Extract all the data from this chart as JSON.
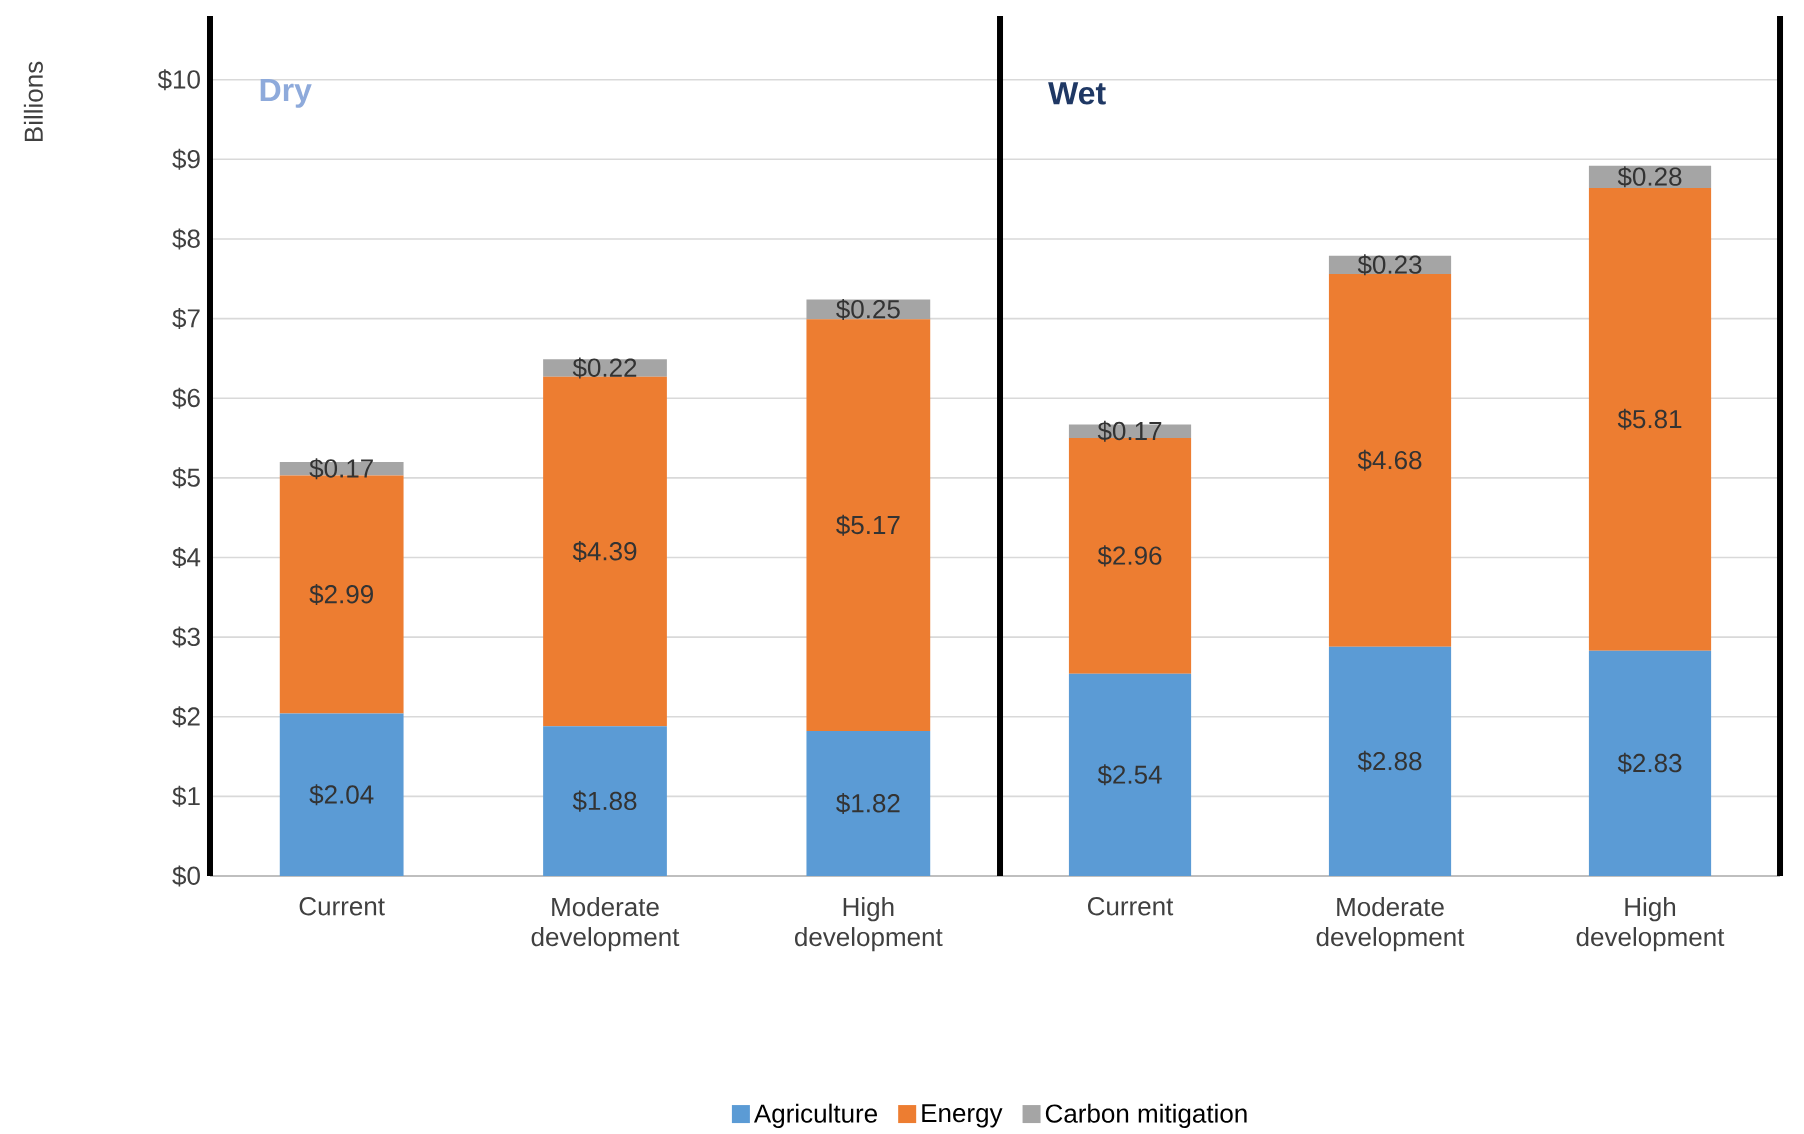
{
  "chart_data": [
    {
      "type": "bar",
      "title": "Dry",
      "ylabel": "Billions",
      "stacked": true,
      "categories": [
        "Current",
        "Moderate development",
        "High development"
      ],
      "ylim": [
        0,
        10.8
      ],
      "yticks": [
        {
          "value": 0,
          "label": "$0"
        },
        {
          "value": 1,
          "label": "$1"
        },
        {
          "value": 2,
          "label": "$2"
        },
        {
          "value": 3,
          "label": "$3"
        },
        {
          "value": 4,
          "label": "$4"
        },
        {
          "value": 5,
          "label": "$5"
        },
        {
          "value": 6,
          "label": "$6"
        },
        {
          "value": 7,
          "label": "$7"
        },
        {
          "value": 8,
          "label": "$8"
        },
        {
          "value": 9,
          "label": "$9"
        },
        {
          "value": 10,
          "label": "$10"
        }
      ],
      "grid": "y",
      "legend": "bottom",
      "series": [
        {
          "name": "Agriculture",
          "color": "#5b9bd5",
          "values": [
            2.04,
            1.88,
            1.82
          ],
          "value_labels": [
            "$2.04",
            "$1.88",
            "$1.82"
          ]
        },
        {
          "name": "Energy",
          "color": "#ed7d31",
          "values": [
            2.99,
            4.39,
            5.17
          ],
          "value_labels": [
            "$2.99",
            "$4.39",
            "$5.17"
          ]
        },
        {
          "name": "Carbon mitigation",
          "color": "#a5a5a5",
          "values": [
            0.17,
            0.22,
            0.25
          ],
          "value_labels": [
            "$0.17",
            "$0.22",
            "$0.25"
          ]
        }
      ]
    },
    {
      "type": "bar",
      "title": "Wet",
      "stacked": true,
      "categories": [
        "Current",
        "Moderate development",
        "High development"
      ],
      "ylim": [
        0,
        10.8
      ],
      "yticks": [
        0,
        1,
        2,
        3,
        4,
        5,
        6,
        7,
        8,
        9,
        10
      ],
      "grid": "y",
      "tick_labels": "x",
      "series": [
        {
          "color": "#5b9bd5",
          "values": [
            2.54,
            2.88,
            2.83
          ],
          "value_labels": [
            "$2.54",
            "$2.88",
            "$2.83"
          ]
        },
        {
          "color": "#ed7d31",
          "values": [
            2.96,
            4.68,
            5.81
          ],
          "value_labels": [
            "$2.96",
            "$4.68",
            "$5.81"
          ]
        },
        {
          "color": "#a5a5a5",
          "values": [
            0.17,
            0.23,
            0.28
          ],
          "value_labels": [
            "$0.17",
            "$0.23",
            "$0.28"
          ]
        }
      ]
    }
  ]
}
